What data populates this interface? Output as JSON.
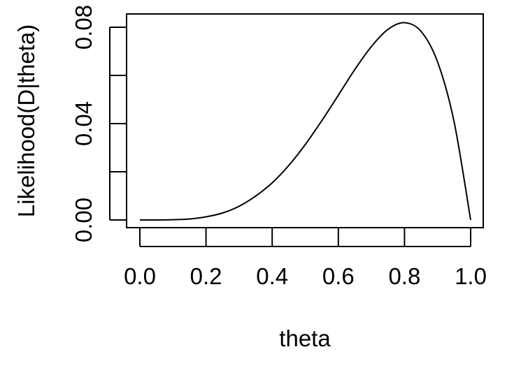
{
  "chart_data": {
    "type": "line",
    "title": "",
    "xlabel": "theta",
    "ylabel": "Likelihood(D|theta)",
    "xlim": [
      0.0,
      1.0
    ],
    "ylim": [
      0.0,
      0.082
    ],
    "x_ticks": [
      0.0,
      0.2,
      0.4,
      0.6,
      0.8,
      1.0
    ],
    "x_tick_labels": [
      "0.0",
      "0.2",
      "0.4",
      "0.6",
      "0.8",
      "1.0"
    ],
    "y_ticks": [
      0.0,
      0.02,
      0.04,
      0.06,
      0.08
    ],
    "y_tick_labels": [
      "0.00",
      "",
      "0.04",
      "",
      "0.08"
    ],
    "grid": false,
    "series": [
      {
        "name": "",
        "x": [
          0.0,
          0.05,
          0.1,
          0.15,
          0.2,
          0.25,
          0.3,
          0.35,
          0.4,
          0.45,
          0.5,
          0.55,
          0.6,
          0.65,
          0.7,
          0.75,
          0.8,
          0.85,
          0.9,
          0.95,
          1.0
        ],
        "y": [
          0.0,
          0.0,
          0.0001,
          0.0004,
          0.0013,
          0.0029,
          0.0057,
          0.0099,
          0.0154,
          0.0226,
          0.0313,
          0.0412,
          0.0518,
          0.0625,
          0.072,
          0.0791,
          0.0819,
          0.0783,
          0.0656,
          0.0407,
          0.0
        ]
      }
    ]
  }
}
